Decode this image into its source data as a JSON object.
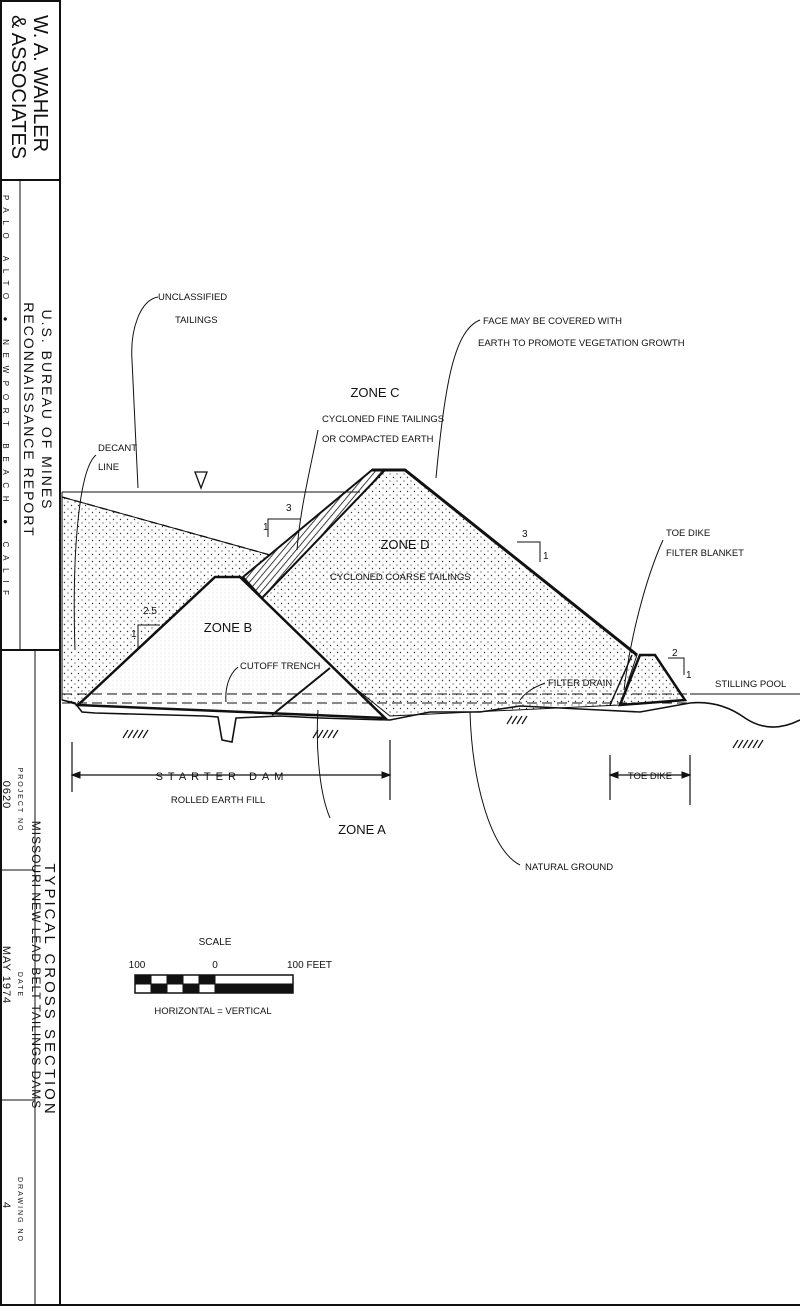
{
  "title_block": {
    "firm": [
      "W. A. WAHLER",
      "& ASSOCIATES"
    ],
    "offices": "PALO ALTO ● NEWPORT BEACH ● CALIF",
    "report": [
      "U.S. BUREAU OF MINES",
      "RECONNAISSANCE REPORT"
    ],
    "title": "TYPICAL CROSS SECTION",
    "subtitle": "MISSOURI NEW LEAD BELT TAILINGS DAMS",
    "project_label": "PROJECT NO",
    "project": "0620",
    "date_label": "DATE",
    "date": "MAY 1974",
    "drawing_label": "DRAWING NO",
    "drawing": "4"
  },
  "labels": {
    "unclassified": [
      "UNCLASSIFIED",
      "TAILINGS"
    ],
    "face": [
      "FACE MAY BE COVERED WITH",
      "EARTH TO PROMOTE VEGETATION GROWTH"
    ],
    "zone_c": "ZONE C",
    "zone_c_desc": [
      "CYCLONED FINE TAILINGS",
      "OR COMPACTED EARTH"
    ],
    "decant": [
      "DECANT",
      "LINE"
    ],
    "zone_d": "ZONE D",
    "zone_d_desc": "CYCLONED COARSE TAILINGS",
    "zone_b": "ZONE B",
    "cutoff": "CUTOFF TRENCH",
    "toe_filter": [
      "TOE DIKE",
      "FILTER BLANKET"
    ],
    "filter_drain": "FILTER DRAIN",
    "stilling_pool": "STILLING POOL",
    "starter_dam": "STARTER DAM",
    "starter_desc": "ROLLED EARTH FILL",
    "zone_a": "ZONE A",
    "toe_dike": "TOE DIKE",
    "natural_ground": "NATURAL GROUND"
  },
  "slopes": [
    [
      "3",
      "1"
    ],
    [
      "2.5",
      "1"
    ],
    [
      "3",
      "1"
    ],
    [
      "2",
      "1"
    ]
  ],
  "scale": {
    "title": "SCALE",
    "left": "100",
    "mid": "0",
    "right": "100 FEET",
    "note": "HORIZONTAL = VERTICAL"
  }
}
